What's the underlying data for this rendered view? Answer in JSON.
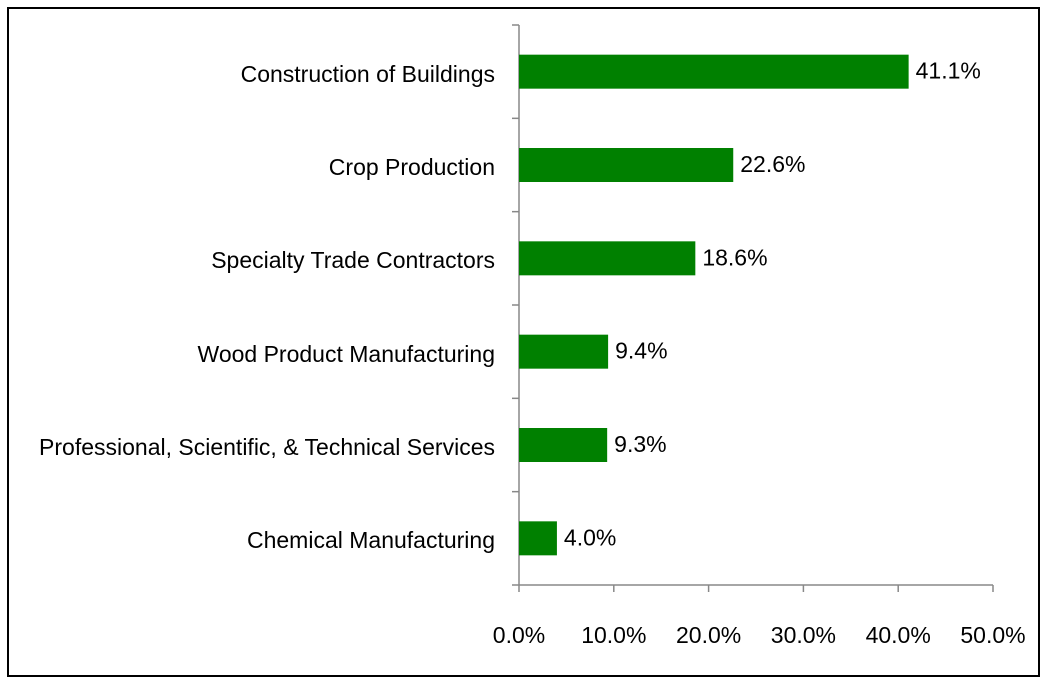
{
  "chart_data": {
    "type": "hbar",
    "categories": [
      "Construction of Buildings",
      "Crop Production",
      "Specialty Trade Contractors",
      "Wood Product Manufacturing",
      "Professional, Scientific, & Technical Services",
      "Chemical Manufacturing"
    ],
    "values": [
      41.1,
      22.6,
      18.6,
      9.4,
      9.3,
      4.0
    ],
    "value_labels": [
      "41.1%",
      "22.6%",
      "18.6%",
      "9.4%",
      "9.3%",
      "4.0%"
    ],
    "color": "#008000",
    "xlim": [
      0,
      50
    ],
    "xticks": [
      {
        "value": 0,
        "label": "0.0%"
      },
      {
        "value": 10,
        "label": "10.0%"
      },
      {
        "value": 20,
        "label": "20.0%"
      },
      {
        "value": 30,
        "label": "30.0%"
      },
      {
        "value": 40,
        "label": "40.0%"
      },
      {
        "value": 50,
        "label": "50.0%"
      }
    ],
    "grid": false
  }
}
